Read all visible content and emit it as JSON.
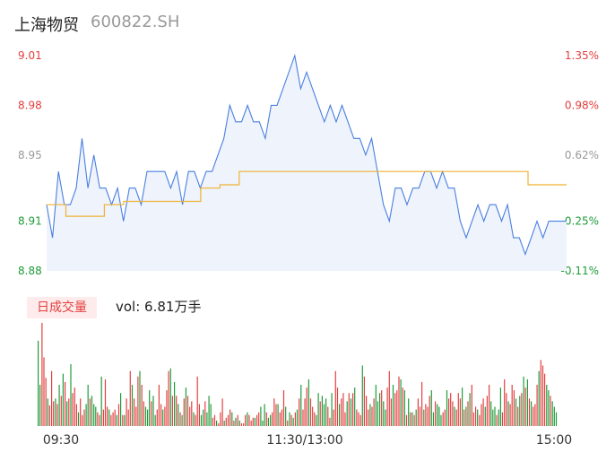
{
  "header": {
    "name": "上海物贸",
    "code": "600822.SH"
  },
  "volume_panel": {
    "tab_label": "日成交量",
    "vol_label": "vol: 6.81万手"
  },
  "colors": {
    "price_line": "#4a7fe0",
    "avg_line": "#f0b232",
    "up": "#e23e3e",
    "down": "#1f9b39",
    "neutral": "#999999"
  },
  "chart_data": [
    {
      "type": "line",
      "title": "",
      "y_ticks": [
        {
          "label": "9.01",
          "value": 9.01,
          "color": "up"
        },
        {
          "label": "8.98",
          "value": 8.98,
          "color": "up"
        },
        {
          "label": "8.95",
          "value": 8.95,
          "color": "neutral"
        },
        {
          "label": "8.91",
          "value": 8.91,
          "color": "down"
        },
        {
          "label": "8.88",
          "value": 8.88,
          "color": "down"
        }
      ],
      "y_right_ticks": [
        "1.35%",
        "0.98%",
        "0.62%",
        "0.25%",
        "-0.11%"
      ],
      "ylim": [
        8.88,
        9.01
      ],
      "x_ticks": [
        "09:30",
        "11:30/13:00",
        "15:00"
      ],
      "grid": false,
      "series": [
        {
          "values": [
            8.92,
            8.9,
            8.94,
            8.92,
            8.92,
            8.93,
            8.96,
            8.93,
            8.95,
            8.93,
            8.93,
            8.92,
            8.93,
            8.91,
            8.93,
            8.93,
            8.92,
            8.94,
            8.94,
            8.94,
            8.94,
            8.93,
            8.94,
            8.92,
            8.94,
            8.94,
            8.93,
            8.94,
            8.94,
            8.95,
            8.96,
            8.98,
            8.97,
            8.97,
            8.98,
            8.97,
            8.97,
            8.96,
            8.98,
            8.98,
            8.99,
            9.0,
            9.01,
            8.99,
            9.0,
            8.99,
            8.98,
            8.97,
            8.98,
            8.97,
            8.98,
            8.97,
            8.96,
            8.96,
            8.95,
            8.96,
            8.94,
            8.92,
            8.91,
            8.93,
            8.93,
            8.92,
            8.93,
            8.93,
            8.94,
            8.94,
            8.93,
            8.94,
            8.93,
            8.93,
            8.91,
            8.9,
            8.91,
            8.92,
            8.91,
            8.92,
            8.92,
            8.91,
            8.92,
            8.9,
            8.9,
            8.89,
            8.9,
            8.91,
            8.9,
            8.91,
            8.91,
            8.91,
            8.91
          ]
        },
        {
          "values": [
            8.92,
            8.913,
            8.913,
            8.92,
            8.922,
            8.922,
            8.922,
            8.922,
            8.93,
            8.932,
            8.94,
            8.94,
            8.94,
            8.94,
            8.94,
            8.94,
            8.94,
            8.94,
            8.94,
            8.94,
            8.94,
            8.94,
            8.94,
            8.94,
            8.94,
            8.932,
            8.932
          ]
        }
      ]
    },
    {
      "type": "bar",
      "title": "",
      "x_ticks": [
        "09:30",
        "11:30/13:00",
        "15:00"
      ],
      "values": [
        62,
        30,
        75,
        50,
        35,
        20,
        15,
        40,
        18,
        20,
        16,
        30,
        22,
        38,
        32,
        18,
        20,
        45,
        24,
        28,
        16,
        10,
        20,
        8,
        12,
        16,
        30,
        20,
        22,
        16,
        14,
        10,
        8,
        36,
        12,
        34,
        14,
        12,
        8,
        10,
        12,
        8,
        16,
        24,
        8,
        8,
        20,
        12,
        40,
        30,
        20,
        14,
        36,
        40,
        30,
        18,
        14,
        12,
        26,
        18,
        22,
        8,
        12,
        30,
        16,
        12,
        14,
        26,
        40,
        42,
        22,
        32,
        22,
        16,
        10,
        8,
        20,
        28,
        22,
        14,
        18,
        10,
        8,
        36,
        16,
        8,
        12,
        18,
        10,
        22,
        16,
        6,
        8,
        4,
        2,
        10,
        20,
        4,
        6,
        8,
        12,
        10,
        4,
        6,
        8,
        4,
        2,
        2,
        8,
        10,
        8,
        4,
        6,
        6,
        8,
        10,
        14,
        4,
        16,
        10,
        6,
        8,
        10,
        20,
        16,
        16,
        10,
        12,
        26,
        14,
        4,
        10,
        8,
        6,
        10,
        12,
        20,
        30,
        12,
        20,
        28,
        34,
        20,
        14,
        10,
        8,
        24,
        18,
        22,
        16,
        20,
        14,
        6,
        24,
        12,
        40,
        28,
        16,
        20,
        24,
        10,
        18,
        24,
        20,
        24,
        28,
        12,
        10,
        8,
        44,
        36,
        22,
        12,
        16,
        14,
        20,
        30,
        18,
        24,
        26,
        18,
        12,
        28,
        40,
        20,
        30,
        24,
        26,
        36,
        34,
        28,
        26,
        8,
        20,
        10,
        10,
        8,
        12,
        20,
        14,
        32,
        12,
        16,
        14,
        22,
        26,
        10,
        18,
        16,
        14,
        8,
        10,
        12,
        26,
        20,
        24,
        18,
        14,
        12,
        24,
        20,
        28,
        12,
        14,
        18,
        24,
        30,
        10,
        14,
        12,
        8,
        16,
        20,
        14,
        22,
        30,
        18,
        12,
        14,
        8,
        12,
        28,
        10,
        34,
        24,
        18,
        16,
        30,
        26,
        20,
        14,
        22,
        24,
        36,
        28,
        34,
        20,
        18,
        14,
        16,
        30,
        40,
        48,
        44,
        38,
        30,
        26,
        22,
        18,
        14,
        10
      ]
    }
  ]
}
